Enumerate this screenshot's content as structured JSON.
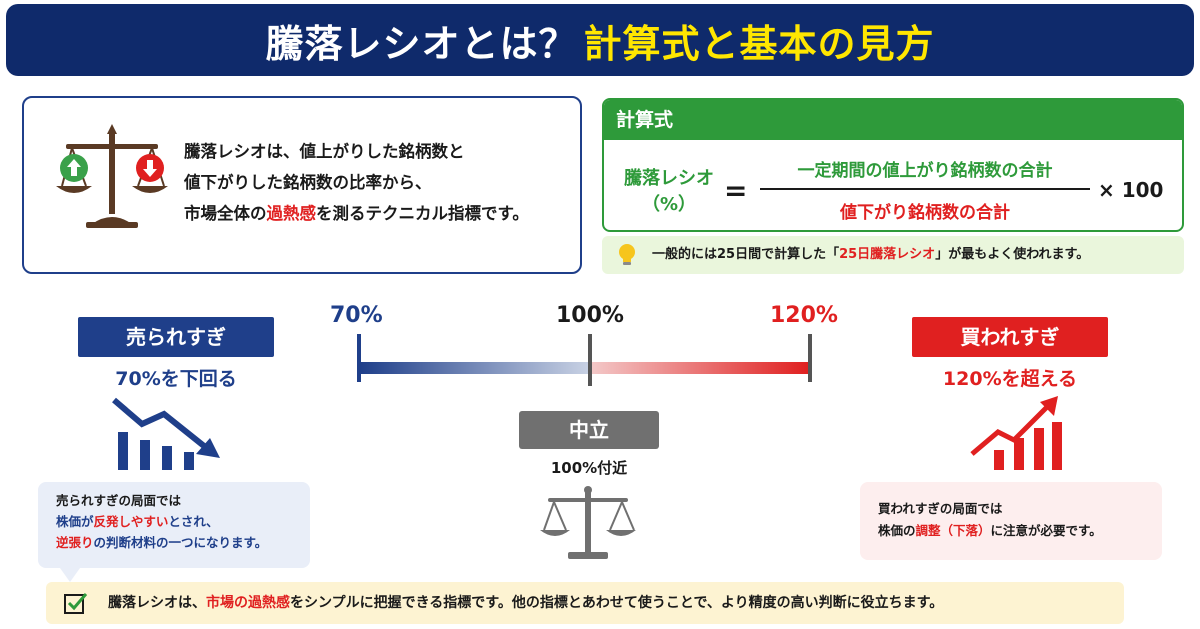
{
  "header": {
    "title_part1": "騰落レシオとは？",
    "title_part2": "計算式と基本の見方"
  },
  "definition": {
    "line1": "騰落レシオは、値上がりした銘柄数と",
    "line2": "値下がりした銘柄数の比率から、",
    "line3_pre": "市場全体の",
    "line3_highlight": "過熱感",
    "line3_post": "を測るテクニカル指標です。"
  },
  "formula": {
    "heading": "計算式",
    "left_line1": "騰落レシオ",
    "left_line2": "（%）",
    "equals": "=",
    "numerator": "一定期間の値上がり銘柄数の合計",
    "denominator": "値下がり銘柄数の合計",
    "multiplier": "× 100"
  },
  "note": {
    "pre": "一般的には25日間で計算した「",
    "highlight": "25日騰落レシオ",
    "post": "」が最もよく使われます。"
  },
  "gauge": {
    "label_low": "70%",
    "label_mid": "100%",
    "label_high": "120%"
  },
  "sell": {
    "badge": "売られすぎ",
    "condition": "70%を下回る",
    "bubble_line1": "売られすぎの局面では",
    "bubble_line2_pre": "株価が",
    "bubble_line2_hl": "反発しやすい",
    "bubble_line2_post": "とされ、",
    "bubble_line3_hl": "逆張り",
    "bubble_line3_post": "の判断材料の一つになります。"
  },
  "neutral": {
    "badge": "中立",
    "condition": "100%付近"
  },
  "buy": {
    "badge": "買われすぎ",
    "condition": "120%を超える",
    "bubble_line1": "買われすぎの局面では",
    "bubble_line2_pre": "株価の",
    "bubble_line2_hl": "調整（下落）",
    "bubble_line2_post": "に注意が必要です。"
  },
  "summary": {
    "pre": "騰落レシオは、",
    "highlight": "市場の過熱感",
    "post": "をシンプルに把握できる指標です。他の指標とあわせて使うことで、より精度の高い判断に役立ちます。"
  },
  "colors": {
    "navy": "#0f2a6b",
    "blue": "#1f3f8a",
    "red": "#e02020",
    "green": "#2e9a3a",
    "gray": "#707070",
    "yellow": "#ffe600"
  },
  "icons": {
    "definition": "balance-scale-icon",
    "up_arrow": "arrow-up-icon",
    "down_arrow": "arrow-down-icon",
    "note": "lightbulb-icon",
    "sell_chart": "falling-bar-chart-icon",
    "buy_chart": "rising-bar-chart-icon",
    "neutral": "balance-scale-icon",
    "summary": "checkbox-icon"
  }
}
